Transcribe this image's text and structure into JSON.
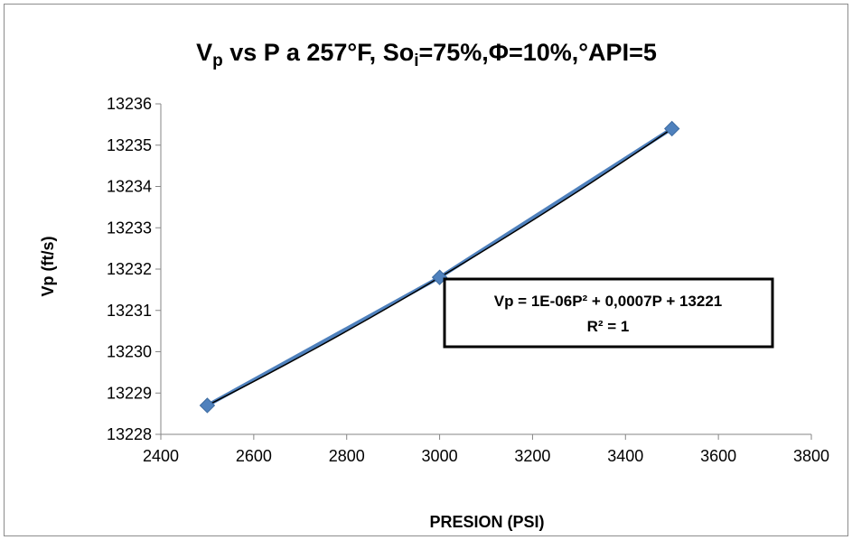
{
  "chart_data": {
    "type": "scatter",
    "title": {
      "parts": [
        "V",
        "p",
        " vs P a 257°F, So",
        "i",
        "=75%,Φ=10%,°API=5"
      ]
    },
    "xlabel": "PRESION (PSI)",
    "ylabel": "Vp (ft/s)",
    "xlim": [
      2400,
      3800
    ],
    "ylim": [
      13228,
      13236
    ],
    "x_ticks": [
      2400,
      2600,
      2800,
      3000,
      3200,
      3400,
      3600,
      3800
    ],
    "y_ticks": [
      13228,
      13229,
      13230,
      13231,
      13232,
      13233,
      13234,
      13235,
      13236
    ],
    "series": [
      {
        "x": [
          2500,
          3000,
          3500
        ],
        "y": [
          13228.7,
          13231.8,
          13235.4
        ],
        "marker": "diamond",
        "color": "#4f81bd"
      }
    ],
    "trendline": {
      "type": "polynomial-2",
      "color": "#000000",
      "equation": "Vp = 1E-06P² + 0,0007P + 13221",
      "r_squared": "R² = 1"
    },
    "grid": false,
    "legend": "none"
  }
}
